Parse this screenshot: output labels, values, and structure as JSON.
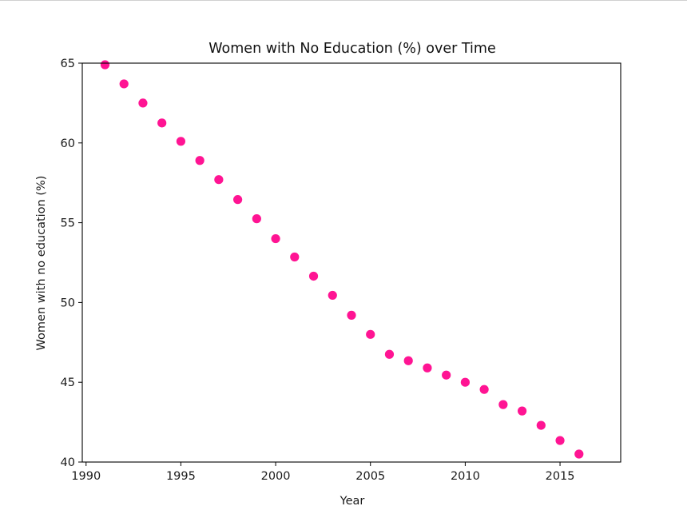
{
  "chart_data": {
    "type": "scatter",
    "title": "Women with No Education (%) over Time",
    "xlabel": "Year",
    "ylabel": "Women with no education (%)",
    "xlim": [
      1989.8,
      2018.2
    ],
    "ylim": [
      40,
      65
    ],
    "xticks": [
      1990,
      1995,
      2000,
      2005,
      2010,
      2015
    ],
    "yticks": [
      40,
      45,
      50,
      55,
      60,
      65
    ],
    "grid": false,
    "marker_color": "#ff1493",
    "x": [
      1991,
      1992,
      1993,
      1994,
      1995,
      1996,
      1997,
      1998,
      1999,
      2000,
      2001,
      2002,
      2003,
      2004,
      2005,
      2006,
      2007,
      2008,
      2009,
      2010,
      2011,
      2012,
      2013,
      2014,
      2015,
      2016
    ],
    "y": [
      64.9,
      63.7,
      62.5,
      61.25,
      60.1,
      58.9,
      57.7,
      56.45,
      55.25,
      54.0,
      52.85,
      51.65,
      50.45,
      49.2,
      48.0,
      46.75,
      46.35,
      45.9,
      45.45,
      45.0,
      44.55,
      43.6,
      43.2,
      42.3,
      41.35,
      40.5
    ]
  }
}
